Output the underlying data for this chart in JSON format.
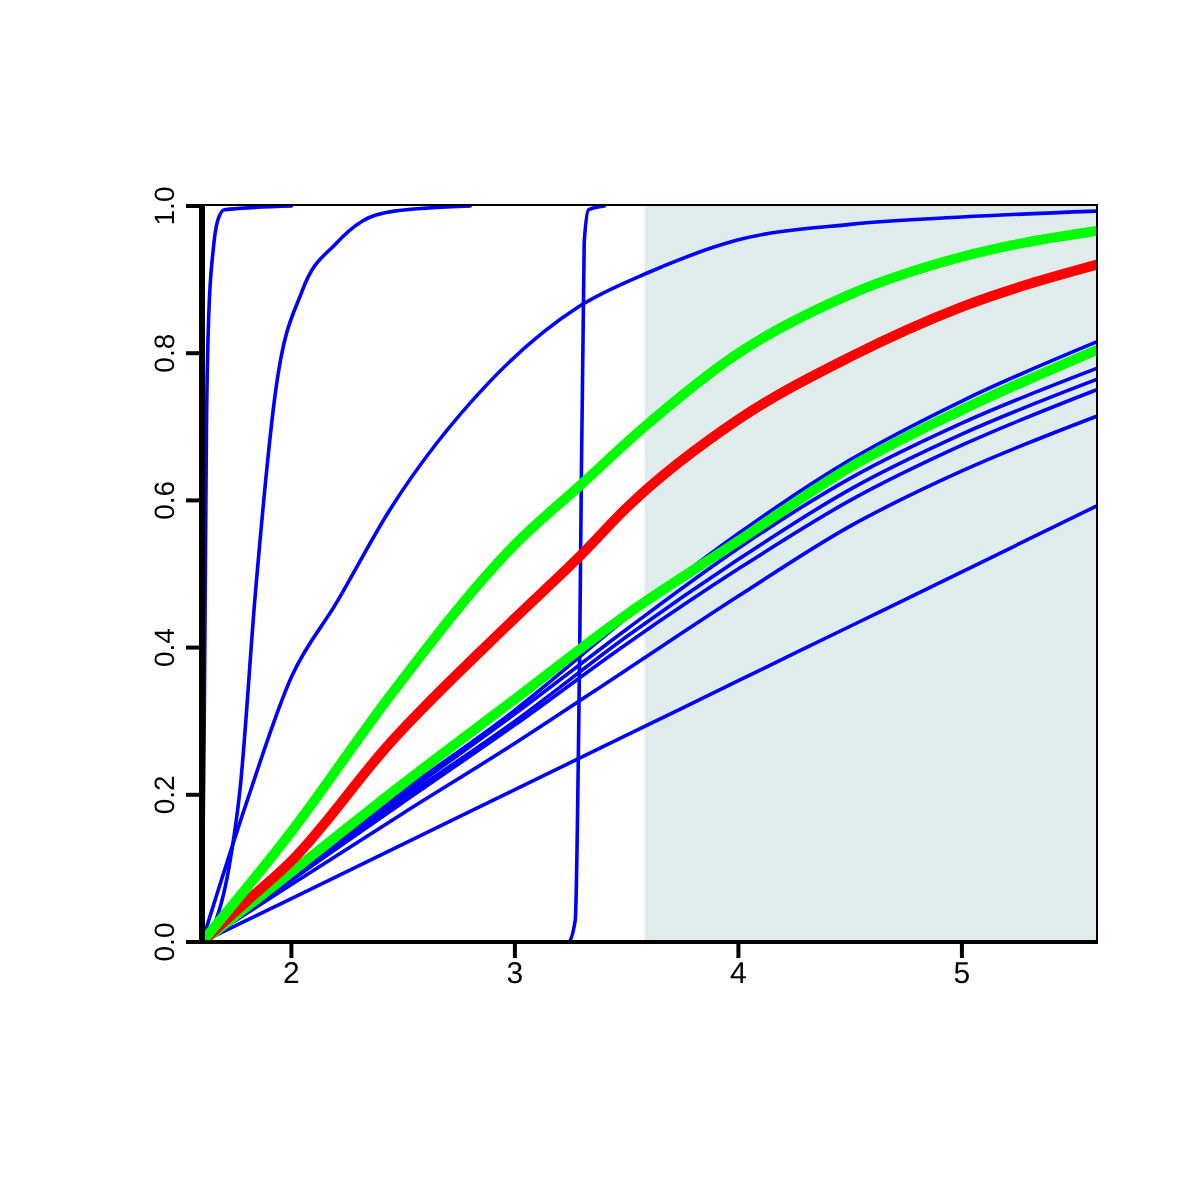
{
  "chart_data": {
    "type": "line",
    "xlim": [
      1.6,
      5.6
    ],
    "xticks": [
      2,
      3,
      4,
      5
    ],
    "ylim": [
      0,
      1
    ],
    "yticks": [
      {
        "value": 0,
        "label": "0.0"
      },
      {
        "value": 0.2,
        "label": "0.2"
      },
      {
        "value": 0.4,
        "label": "0.4"
      },
      {
        "value": 0.6,
        "label": "0.6"
      },
      {
        "value": 0.8,
        "label": "0.8"
      },
      {
        "value": 1,
        "label": "1.0"
      }
    ],
    "marker": "none",
    "line_style": "solid",
    "bands": [
      {
        "axis": "x",
        "from": 3.58,
        "to": 5.6,
        "color": "#e0ecec"
      }
    ],
    "series": [
      {
        "color": "#0000ff",
        "x": [
          1.6,
          1.61,
          1.62,
          1.63,
          1.65,
          1.67,
          1.7,
          2
        ],
        "values": [
          0,
          0.3,
          0.7,
          0.85,
          0.94,
          0.98,
          0.995,
          1
        ]
      },
      {
        "color": "#0000ff",
        "x": [
          1.6,
          1.65,
          1.72,
          1.77,
          1.84,
          1.93,
          2.05,
          2.2,
          2.32,
          2.46,
          2.8
        ],
        "values": [
          0,
          0.02,
          0.1,
          0.207,
          0.478,
          0.75,
          0.886,
          0.949,
          0.98,
          0.993,
          1
        ]
      },
      {
        "color": "#0000ff",
        "x": [
          1.6,
          1.8,
          2,
          2.2,
          2.44,
          2.88,
          3.29,
          3.6,
          4,
          4.5,
          5,
          5.6
        ],
        "values": [
          0,
          0.19,
          0.36,
          0.46,
          0.587,
          0.759,
          0.864,
          0.91,
          0.954,
          0.975,
          0.985,
          0.993
        ]
      },
      {
        "color": "#0000ff",
        "x": [
          1.6,
          3.24,
          3.27,
          3.29,
          3.31,
          3.33,
          3.4
        ],
        "values": [
          0,
          0,
          0.03,
          0.4,
          0.95,
          0.995,
          1
        ]
      },
      {
        "color": "#0000ff",
        "x": [
          1.6,
          2,
          2.5,
          3,
          3.5,
          4,
          4.5,
          5,
          5.6
        ],
        "values": [
          0,
          0.09,
          0.205,
          0.315,
          0.44,
          0.555,
          0.655,
          0.735,
          0.815
        ]
      },
      {
        "color": "#0000ff",
        "x": [
          1.6,
          2,
          2.5,
          3,
          3.5,
          4,
          4.5,
          5,
          5.6
        ],
        "values": [
          0,
          0.088,
          0.2,
          0.31,
          0.425,
          0.535,
          0.63,
          0.705,
          0.779
        ]
      },
      {
        "color": "#0000ff",
        "x": [
          1.6,
          2,
          2.5,
          3,
          3.5,
          4,
          4.5,
          5,
          5.6
        ],
        "values": [
          0,
          0.086,
          0.195,
          0.3,
          0.415,
          0.52,
          0.615,
          0.69,
          0.764
        ]
      },
      {
        "color": "#0000ff",
        "x": [
          1.6,
          2,
          2.5,
          3,
          3.5,
          4,
          4.5,
          5,
          5.6
        ],
        "values": [
          0,
          0.084,
          0.19,
          0.295,
          0.405,
          0.507,
          0.6,
          0.675,
          0.75
        ]
      },
      {
        "color": "#0000ff",
        "x": [
          1.6,
          2,
          2.5,
          3,
          3.5,
          4,
          4.5,
          5,
          5.6
        ],
        "values": [
          0,
          0.078,
          0.175,
          0.27,
          0.37,
          0.47,
          0.565,
          0.64,
          0.714
        ]
      },
      {
        "color": "#0000ff",
        "x": [
          1.6,
          2,
          2.5,
          3,
          3.5,
          4,
          4.5,
          5,
          5.6
        ],
        "values": [
          0,
          0.059,
          0.133,
          0.207,
          0.281,
          0.355,
          0.429,
          0.503,
          0.592
        ]
      },
      {
        "color": "#00ff00",
        "x": [
          1.6,
          2,
          2.5,
          3,
          3.5,
          4,
          4.5,
          5,
          5.6
        ],
        "values": [
          0,
          0.095,
          0.215,
          0.33,
          0.445,
          0.545,
          0.645,
          0.723,
          0.804
        ]
      },
      {
        "color": "#ff0000",
        "x": [
          1.6,
          1.78,
          2,
          2.44,
          3,
          3.29,
          3.5,
          4,
          4.5,
          5,
          5.6
        ],
        "values": [
          0,
          0.05,
          0.11,
          0.27,
          0.44,
          0.524,
          0.59,
          0.71,
          0.795,
          0.863,
          0.92
        ]
      },
      {
        "color": "#00ff00",
        "x": [
          1.6,
          2,
          2.44,
          3,
          3.29,
          3.58,
          4,
          4.5,
          5,
          5.6
        ],
        "values": [
          0,
          0.15,
          0.334,
          0.54,
          0.62,
          0.7,
          0.8,
          0.88,
          0.931,
          0.966
        ]
      }
    ]
  }
}
